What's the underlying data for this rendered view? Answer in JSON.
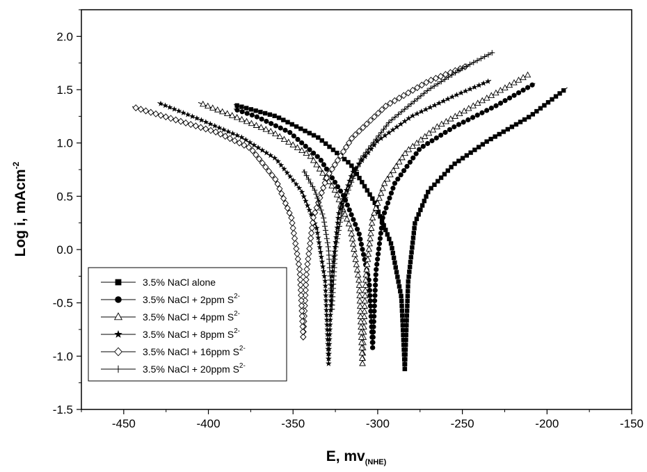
{
  "chart_data": {
    "type": "line",
    "title": "",
    "xlabel": "E, mv",
    "xlabel_sub": "(NHE)",
    "ylabel": "Log i, mAcm",
    "ylabel_sup": "-2",
    "xlim": [
      -475,
      -150
    ],
    "ylim": [
      -1.5,
      2.25
    ],
    "x_ticks": [
      -450,
      -400,
      -350,
      -300,
      -250,
      -200,
      -150
    ],
    "y_ticks": [
      -1.5,
      -1.0,
      -0.5,
      0.0,
      0.5,
      1.0,
      1.5,
      2.0
    ],
    "x_tick_labels": [
      "-450",
      "-400",
      "-350",
      "-300",
      "-250",
      "-200",
      "-150"
    ],
    "y_tick_labels": [
      "-1.5",
      "-1.0",
      "-0.5",
      "0.0",
      "0.5",
      "1.0",
      "1.5",
      "2.0"
    ],
    "grid": false,
    "legend_position": "bottom-left",
    "series": [
      {
        "name": "3.5% NaCl alone",
        "name_sup": "",
        "marker": "square-filled",
        "color": "#000000",
        "ecorr": -284,
        "min": -1.12,
        "anodic": [
          [
            -284,
            -1.12
          ],
          [
            -282,
            -0.3
          ],
          [
            -278,
            0.25
          ],
          [
            -270,
            0.55
          ],
          [
            -255,
            0.8
          ],
          [
            -235,
            1.02
          ],
          [
            -210,
            1.25
          ],
          [
            -188,
            1.52
          ]
        ],
        "cathodic": [
          [
            -284,
            -1.12
          ],
          [
            -286,
            -0.45
          ],
          [
            -292,
            0.05
          ],
          [
            -302,
            0.45
          ],
          [
            -316,
            0.8
          ],
          [
            -335,
            1.05
          ],
          [
            -360,
            1.25
          ],
          [
            -385,
            1.36
          ]
        ]
      },
      {
        "name": "3.5% NaCl + 2ppm S",
        "name_sup": "2-",
        "marker": "circle-filled",
        "color": "#000000",
        "ecorr": -303,
        "min": -0.92,
        "anodic": [
          [
            -303,
            -0.92
          ],
          [
            -301,
            -0.2
          ],
          [
            -297,
            0.3
          ],
          [
            -290,
            0.62
          ],
          [
            -275,
            0.95
          ],
          [
            -255,
            1.15
          ],
          [
            -230,
            1.35
          ],
          [
            -207,
            1.56
          ]
        ],
        "cathodic": [
          [
            -303,
            -0.92
          ],
          [
            -305,
            -0.3
          ],
          [
            -311,
            0.15
          ],
          [
            -320,
            0.5
          ],
          [
            -334,
            0.85
          ],
          [
            -352,
            1.1
          ],
          [
            -372,
            1.25
          ],
          [
            -385,
            1.32
          ]
        ]
      },
      {
        "name": "3.5% NaCl + 4ppm S",
        "name_sup": "2-",
        "marker": "triangle-open",
        "color": "#000000",
        "ecorr": -309,
        "min": -1.07,
        "anodic": [
          [
            -309,
            -1.07
          ],
          [
            -307,
            -0.25
          ],
          [
            -303,
            0.3
          ],
          [
            -296,
            0.62
          ],
          [
            -283,
            0.92
          ],
          [
            -265,
            1.15
          ],
          [
            -240,
            1.38
          ],
          [
            -211,
            1.64
          ]
        ],
        "cathodic": [
          [
            -309,
            -1.07
          ],
          [
            -311,
            -0.3
          ],
          [
            -316,
            0.2
          ],
          [
            -325,
            0.55
          ],
          [
            -340,
            0.88
          ],
          [
            -362,
            1.1
          ],
          [
            -385,
            1.25
          ],
          [
            -406,
            1.38
          ]
        ]
      },
      {
        "name": "3.5% NaCl + 8ppm S",
        "name_sup": "2-",
        "marker": "star-filled",
        "color": "#000000",
        "ecorr": -329,
        "min": -1.07,
        "anodic": [
          [
            -329,
            -1.07
          ],
          [
            -327,
            -0.25
          ],
          [
            -323,
            0.35
          ],
          [
            -315,
            0.72
          ],
          [
            -300,
            1.02
          ],
          [
            -280,
            1.25
          ],
          [
            -255,
            1.44
          ],
          [
            -233,
            1.59
          ]
        ],
        "cathodic": [
          [
            -329,
            -1.07
          ],
          [
            -331,
            -0.3
          ],
          [
            -336,
            0.2
          ],
          [
            -345,
            0.55
          ],
          [
            -360,
            0.85
          ],
          [
            -380,
            1.05
          ],
          [
            -405,
            1.22
          ],
          [
            -430,
            1.38
          ]
        ]
      },
      {
        "name": "3.5% NaCl + 16ppm S",
        "name_sup": "2-",
        "marker": "diamond-open",
        "color": "#000000",
        "ecorr": -344,
        "min": -0.82,
        "anodic": [
          [
            -344,
            -0.82
          ],
          [
            -342,
            -0.2
          ],
          [
            -338,
            0.3
          ],
          [
            -330,
            0.68
          ],
          [
            -315,
            1.05
          ],
          [
            -295,
            1.35
          ],
          [
            -270,
            1.58
          ],
          [
            -246,
            1.73
          ]
        ],
        "cathodic": [
          [
            -344,
            -0.82
          ],
          [
            -346,
            -0.2
          ],
          [
            -351,
            0.3
          ],
          [
            -360,
            0.65
          ],
          [
            -375,
            0.95
          ],
          [
            -395,
            1.1
          ],
          [
            -420,
            1.22
          ],
          [
            -445,
            1.34
          ]
        ]
      },
      {
        "name": "3.5% NaCl + 20ppm S",
        "name_sup": "2-",
        "marker": "plus",
        "color": "#000000",
        "ecorr": -327,
        "min": -0.56,
        "anodic": [
          [
            -327,
            -0.56
          ],
          [
            -325,
            0.0
          ],
          [
            -320,
            0.45
          ],
          [
            -310,
            0.85
          ],
          [
            -293,
            1.2
          ],
          [
            -270,
            1.5
          ],
          [
            -250,
            1.7
          ],
          [
            -232,
            1.85
          ]
        ],
        "cathodic": [
          [
            -327,
            -0.56
          ],
          [
            -329,
            0.0
          ],
          [
            -332,
            0.3
          ],
          [
            -337,
            0.55
          ],
          [
            -344,
            0.75
          ]
        ]
      }
    ]
  }
}
